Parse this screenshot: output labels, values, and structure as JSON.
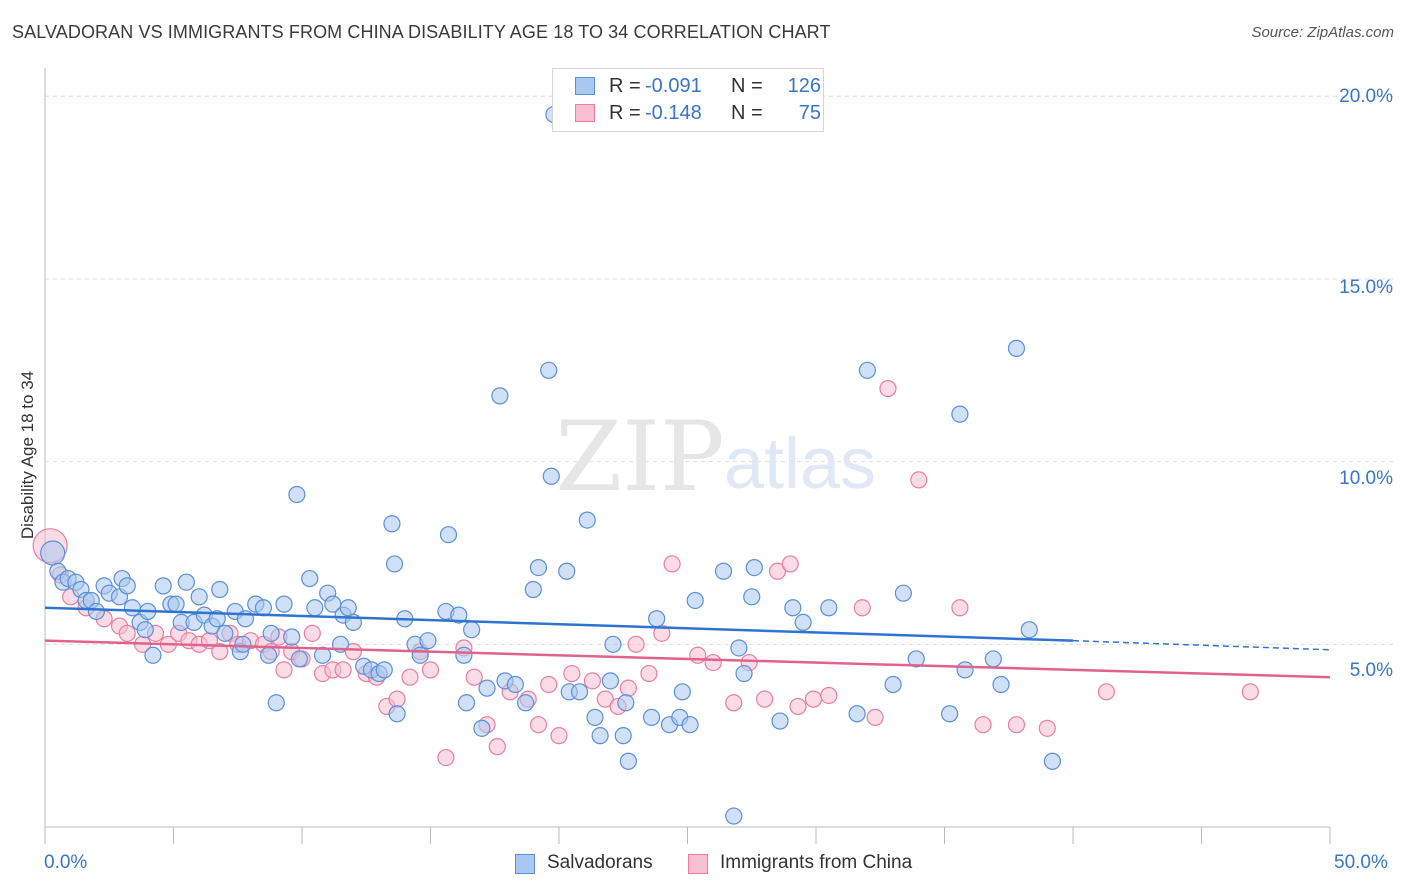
{
  "header": {
    "title": "SALVADORAN VS IMMIGRANTS FROM CHINA DISABILITY AGE 18 TO 34 CORRELATION CHART",
    "source": "Source: ZipAtlas.com"
  },
  "watermark": {
    "zip": "ZIP",
    "atlas": "atlas"
  },
  "legend": {
    "rows": [
      {
        "r_label": "R =",
        "r_value": "-0.091",
        "n_label": "N =",
        "n_value": "126",
        "fill": "#a9c8f0",
        "stroke": "#5b8fd6"
      },
      {
        "r_label": "R =",
        "r_value": "-0.148",
        "n_label": "N =",
        "n_value": "75",
        "fill": "#f7bfd1",
        "stroke": "#e97ea1"
      }
    ]
  },
  "bottom_legend": [
    {
      "label": "Salvadorans",
      "fill": "#a9c8f0",
      "stroke": "#5b8fd6"
    },
    {
      "label": "Immigrants from China",
      "fill": "#f7bfd1",
      "stroke": "#e97ea1"
    }
  ],
  "colors": {
    "blue_line": "#2e74d0",
    "pink_line": "#e0628e",
    "axis_label": "#3a75c4",
    "grid": "#dddddd"
  },
  "chart_data": {
    "type": "scatter",
    "ylabel": "Disability Age 18 to 34",
    "x_tick_labels": [
      "0.0%",
      "50.0%"
    ],
    "y_tick_labels": [
      "5.0%",
      "10.0%",
      "15.0%",
      "20.0%"
    ],
    "xlim": [
      0,
      50
    ],
    "ylim": [
      0,
      20.5
    ],
    "y_grid": [
      5,
      10,
      15,
      20
    ],
    "series": [
      {
        "name": "Salvadorans",
        "stroke": "#5b8fd6",
        "fill": "#a9c8f0",
        "trend": {
          "x": [
            0,
            40
          ],
          "y": [
            6.0,
            5.1
          ],
          "dashed_to": [
            50,
            4.85
          ]
        },
        "points": [
          [
            0.3,
            7.5
          ],
          [
            0.5,
            7.0
          ],
          [
            0.7,
            6.7
          ],
          [
            0.9,
            6.8
          ],
          [
            1.2,
            6.7
          ],
          [
            1.4,
            6.5
          ],
          [
            1.6,
            6.2
          ],
          [
            1.8,
            6.2
          ],
          [
            2.0,
            5.9
          ],
          [
            2.3,
            6.6
          ],
          [
            2.5,
            6.4
          ],
          [
            2.9,
            6.3
          ],
          [
            3.0,
            6.8
          ],
          [
            3.2,
            6.6
          ],
          [
            3.4,
            6.0
          ],
          [
            3.7,
            5.6
          ],
          [
            3.9,
            5.4
          ],
          [
            4.0,
            5.9
          ],
          [
            4.2,
            4.7
          ],
          [
            4.6,
            6.6
          ],
          [
            4.9,
            6.1
          ],
          [
            5.1,
            6.1
          ],
          [
            5.3,
            5.6
          ],
          [
            5.5,
            6.7
          ],
          [
            5.8,
            5.6
          ],
          [
            6.0,
            6.3
          ],
          [
            6.2,
            5.8
          ],
          [
            6.5,
            5.5
          ],
          [
            6.7,
            5.7
          ],
          [
            6.8,
            6.5
          ],
          [
            7.0,
            5.3
          ],
          [
            7.4,
            5.9
          ],
          [
            7.6,
            4.8
          ],
          [
            7.7,
            5.0
          ],
          [
            7.8,
            5.7
          ],
          [
            8.2,
            6.1
          ],
          [
            8.5,
            6.0
          ],
          [
            8.7,
            4.7
          ],
          [
            8.8,
            5.3
          ],
          [
            9.0,
            3.4
          ],
          [
            9.3,
            6.1
          ],
          [
            9.6,
            5.2
          ],
          [
            9.8,
            9.1
          ],
          [
            9.9,
            4.6
          ],
          [
            10.3,
            6.8
          ],
          [
            10.5,
            6.0
          ],
          [
            10.8,
            4.7
          ],
          [
            11.0,
            6.4
          ],
          [
            11.2,
            6.1
          ],
          [
            11.5,
            5.0
          ],
          [
            11.6,
            5.8
          ],
          [
            11.8,
            6.0
          ],
          [
            12.0,
            5.6
          ],
          [
            12.4,
            4.4
          ],
          [
            12.7,
            4.3
          ],
          [
            13.0,
            4.2
          ],
          [
            13.2,
            4.3
          ],
          [
            13.5,
            8.3
          ],
          [
            13.6,
            7.2
          ],
          [
            13.7,
            3.1
          ],
          [
            14.0,
            5.7
          ],
          [
            14.4,
            5.0
          ],
          [
            14.6,
            4.7
          ],
          [
            14.9,
            5.1
          ],
          [
            15.6,
            5.9
          ],
          [
            15.7,
            8.0
          ],
          [
            16.1,
            5.8
          ],
          [
            16.3,
            4.7
          ],
          [
            16.4,
            3.4
          ],
          [
            16.6,
            5.4
          ],
          [
            17.0,
            2.7
          ],
          [
            17.2,
            3.8
          ],
          [
            17.7,
            11.8
          ],
          [
            17.9,
            4.0
          ],
          [
            18.3,
            3.9
          ],
          [
            18.7,
            3.4
          ],
          [
            19.0,
            6.5
          ],
          [
            19.2,
            7.1
          ],
          [
            19.6,
            12.5
          ],
          [
            19.7,
            9.6
          ],
          [
            19.8,
            19.5
          ],
          [
            20.3,
            7.0
          ],
          [
            20.4,
            3.7
          ],
          [
            20.8,
            3.7
          ],
          [
            21.1,
            8.4
          ],
          [
            21.4,
            3.0
          ],
          [
            21.6,
            2.5
          ],
          [
            22.0,
            4.0
          ],
          [
            22.1,
            5.0
          ],
          [
            22.5,
            2.5
          ],
          [
            22.6,
            3.4
          ],
          [
            22.7,
            1.8
          ],
          [
            23.6,
            3.0
          ],
          [
            23.8,
            5.7
          ],
          [
            24.3,
            2.8
          ],
          [
            24.7,
            3.0
          ],
          [
            24.8,
            3.7
          ],
          [
            25.1,
            2.8
          ],
          [
            25.3,
            6.2
          ],
          [
            26.4,
            7.0
          ],
          [
            26.8,
            0.3
          ],
          [
            27.0,
            4.9
          ],
          [
            27.2,
            4.2
          ],
          [
            27.5,
            6.3
          ],
          [
            27.6,
            7.1
          ],
          [
            28.6,
            2.9
          ],
          [
            29.1,
            6.0
          ],
          [
            29.5,
            5.6
          ],
          [
            30.5,
            6.0
          ],
          [
            31.6,
            3.1
          ],
          [
            32.0,
            12.5
          ],
          [
            33.0,
            3.9
          ],
          [
            33.4,
            6.4
          ],
          [
            33.9,
            4.6
          ],
          [
            35.2,
            3.1
          ],
          [
            35.6,
            11.3
          ],
          [
            35.8,
            4.3
          ],
          [
            36.9,
            4.6
          ],
          [
            37.2,
            3.9
          ],
          [
            37.8,
            13.1
          ],
          [
            38.3,
            5.4
          ],
          [
            39.2,
            1.8
          ]
        ]
      },
      {
        "name": "Immigrants from China",
        "stroke": "#e97ea1",
        "fill": "#f7bfd1",
        "trend": {
          "x": [
            0,
            50
          ],
          "y": [
            5.1,
            4.1
          ]
        },
        "points": [
          [
            0.2,
            7.7
          ],
          [
            0.6,
            6.9
          ],
          [
            1.0,
            6.3
          ],
          [
            1.6,
            6.0
          ],
          [
            2.3,
            5.7
          ],
          [
            2.9,
            5.5
          ],
          [
            3.2,
            5.3
          ],
          [
            3.8,
            5.0
          ],
          [
            4.3,
            5.3
          ],
          [
            4.8,
            5.0
          ],
          [
            5.2,
            5.3
          ],
          [
            5.6,
            5.1
          ],
          [
            6.0,
            5.0
          ],
          [
            6.4,
            5.1
          ],
          [
            6.8,
            4.8
          ],
          [
            7.2,
            5.3
          ],
          [
            7.5,
            5.0
          ],
          [
            8.0,
            5.1
          ],
          [
            8.5,
            5.0
          ],
          [
            8.8,
            4.8
          ],
          [
            9.1,
            5.2
          ],
          [
            9.3,
            4.3
          ],
          [
            9.6,
            4.8
          ],
          [
            10.0,
            4.6
          ],
          [
            10.4,
            5.3
          ],
          [
            10.8,
            4.2
          ],
          [
            11.2,
            4.3
          ],
          [
            11.6,
            4.3
          ],
          [
            12.0,
            4.8
          ],
          [
            12.5,
            4.2
          ],
          [
            12.9,
            4.1
          ],
          [
            13.3,
            3.3
          ],
          [
            13.7,
            3.5
          ],
          [
            14.2,
            4.1
          ],
          [
            14.6,
            4.8
          ],
          [
            15.0,
            4.3
          ],
          [
            15.6,
            1.9
          ],
          [
            16.3,
            4.9
          ],
          [
            16.7,
            4.1
          ],
          [
            17.2,
            2.8
          ],
          [
            17.6,
            2.2
          ],
          [
            18.1,
            3.7
          ],
          [
            18.8,
            3.5
          ],
          [
            19.2,
            2.8
          ],
          [
            19.6,
            3.9
          ],
          [
            20.0,
            2.5
          ],
          [
            20.5,
            4.2
          ],
          [
            21.3,
            4.0
          ],
          [
            21.8,
            3.5
          ],
          [
            22.3,
            3.3
          ],
          [
            22.7,
            3.8
          ],
          [
            23.0,
            5.0
          ],
          [
            23.5,
            4.2
          ],
          [
            24.0,
            5.3
          ],
          [
            24.4,
            7.2
          ],
          [
            25.4,
            4.7
          ],
          [
            26.0,
            4.5
          ],
          [
            26.8,
            3.4
          ],
          [
            27.4,
            4.5
          ],
          [
            28.0,
            3.5
          ],
          [
            28.5,
            7.0
          ],
          [
            29.0,
            7.2
          ],
          [
            29.3,
            3.3
          ],
          [
            29.9,
            3.5
          ],
          [
            30.5,
            3.6
          ],
          [
            31.8,
            6.0
          ],
          [
            32.3,
            3.0
          ],
          [
            32.8,
            12.0
          ],
          [
            34.0,
            9.5
          ],
          [
            35.6,
            6.0
          ],
          [
            36.5,
            2.8
          ],
          [
            37.8,
            2.8
          ],
          [
            39.0,
            2.7
          ],
          [
            41.3,
            3.7
          ],
          [
            46.9,
            3.7
          ]
        ]
      }
    ]
  }
}
